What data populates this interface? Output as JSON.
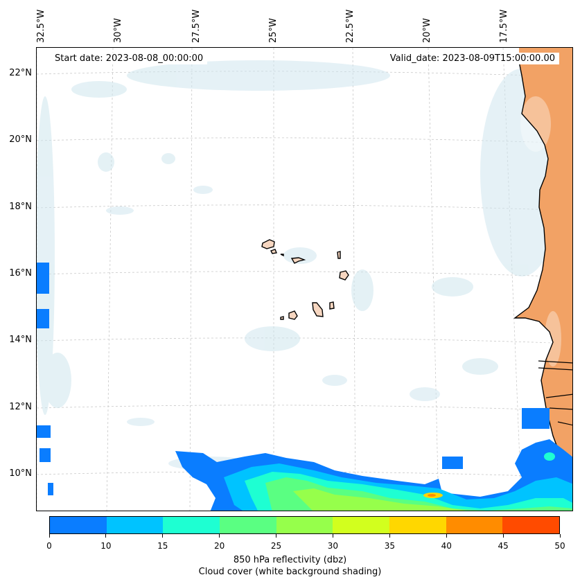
{
  "map": {
    "start_date": "Start date: 2023-08-08_00:00:00",
    "valid_date": "Valid_date: 2023-08-09T15:00:00.00",
    "lon_labels": [
      "32.5°W",
      "30°W",
      "27.5°W",
      "25°W",
      "22.5°W",
      "20°W",
      "17.5°W"
    ],
    "lat_labels": [
      "22°N",
      "20°N",
      "18°N",
      "16°N",
      "14°N",
      "12°N",
      "10°N"
    ]
  },
  "colorbar": {
    "ticks": [
      "0",
      "10",
      "15",
      "20",
      "25",
      "30",
      "35",
      "40",
      "45",
      "50"
    ],
    "colors": [
      "#0a7dff",
      "#00c3ff",
      "#1effd2",
      "#5aff82",
      "#96ff4b",
      "#d2ff1e",
      "#ffd700",
      "#ff8c00",
      "#ff4b00"
    ],
    "label": "850 hPa reflectivity (dbz)",
    "sublabel": "Cloud cover (white background shading)"
  },
  "colors": {
    "land": "#f2a265",
    "island_fill": "#f6d6c0",
    "cloud": "#cfe6ee",
    "coast": "#000000"
  }
}
